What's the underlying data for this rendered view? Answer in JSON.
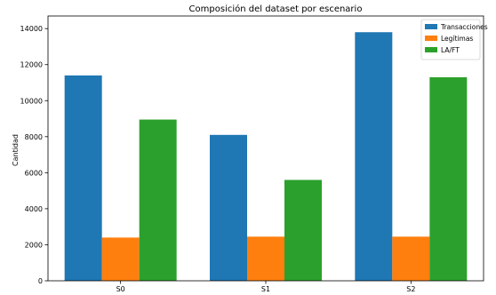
{
  "chart_data": {
    "type": "bar",
    "title": "Composición del dataset por escenario",
    "xlabel": "",
    "ylabel": "Cantidad",
    "categories": [
      "S0",
      "S1",
      "S2"
    ],
    "series": [
      {
        "name": "Transacciones",
        "color": "#1f77b4",
        "values": [
          11400,
          8100,
          13800
        ]
      },
      {
        "name": "Legítimas",
        "color": "#ff7f0e",
        "values": [
          2400,
          2450,
          2450
        ]
      },
      {
        "name": "LA/FT",
        "color": "#2ca02c",
        "values": [
          8950,
          5600,
          11300
        ]
      }
    ],
    "ylim": [
      0,
      14700
    ],
    "yticks": [
      0,
      2000,
      4000,
      6000,
      8000,
      10000,
      12000,
      14000
    ],
    "grid": false,
    "legend_position": "top-right"
  }
}
